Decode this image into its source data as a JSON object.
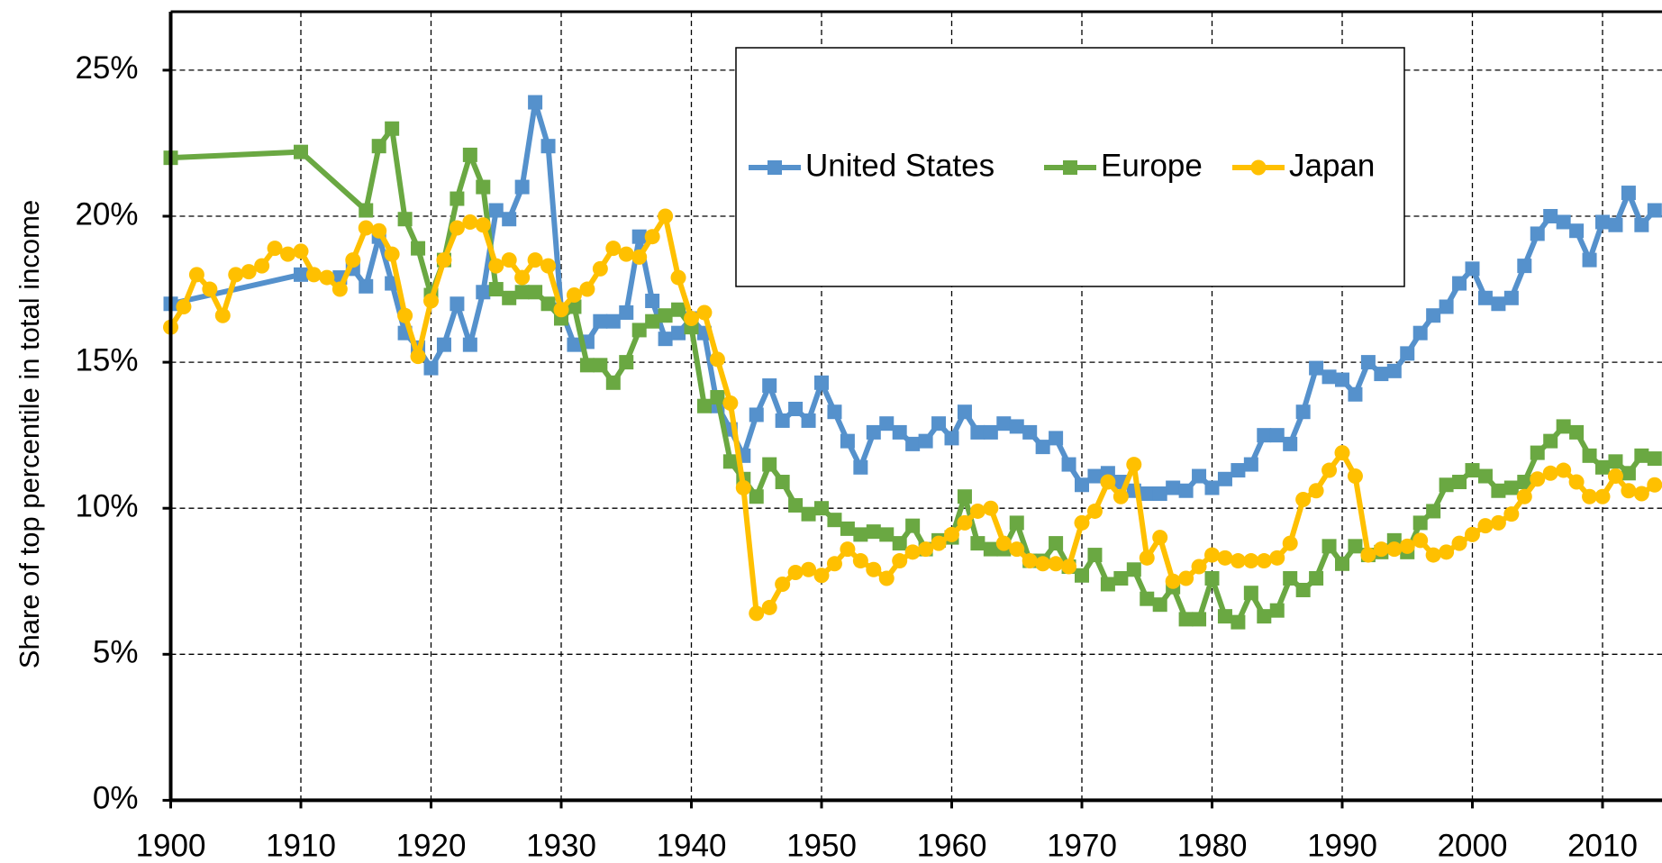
{
  "chart_data": {
    "type": "line",
    "y_label": "Share of top percentile in total income",
    "grid": true,
    "xlim": [
      1900,
      2015
    ],
    "ylim": [
      0,
      27
    ],
    "xticks": [
      1900,
      1910,
      1920,
      1930,
      1940,
      1950,
      1960,
      1970,
      1980,
      1990,
      2000,
      2010
    ],
    "yticks": [
      {
        "value": 0,
        "label": "0%"
      },
      {
        "value": 5,
        "label": "5%"
      },
      {
        "value": 10,
        "label": "10%"
      },
      {
        "value": 15,
        "label": "15%"
      },
      {
        "value": 20,
        "label": "20%"
      },
      {
        "value": 25,
        "label": "25%"
      }
    ],
    "series": [
      {
        "name": "United States",
        "color": "#5591cc",
        "marker": "square",
        "x": [
          1900,
          1910,
          1913,
          1914,
          1915,
          1916,
          1917,
          1918,
          1919,
          1920,
          1921,
          1922,
          1923,
          1924,
          1925,
          1926,
          1927,
          1928,
          1929,
          1930,
          1931,
          1932,
          1933,
          1934,
          1935,
          1936,
          1937,
          1938,
          1939,
          1940,
          1941,
          1942,
          1943,
          1944,
          1945,
          1946,
          1947,
          1948,
          1949,
          1950,
          1951,
          1952,
          1953,
          1954,
          1955,
          1956,
          1957,
          1958,
          1959,
          1960,
          1961,
          1962,
          1963,
          1964,
          1965,
          1966,
          1967,
          1968,
          1969,
          1970,
          1971,
          1972,
          1973,
          1974,
          1975,
          1976,
          1977,
          1978,
          1979,
          1980,
          1981,
          1982,
          1983,
          1984,
          1985,
          1986,
          1987,
          1988,
          1989,
          1990,
          1991,
          1992,
          1993,
          1994,
          1995,
          1996,
          1997,
          1998,
          1999,
          2000,
          2001,
          2002,
          2003,
          2004,
          2005,
          2006,
          2007,
          2008,
          2009,
          2010,
          2011,
          2012,
          2013,
          2014
        ],
        "values": [
          17.0,
          18.0,
          17.9,
          18.2,
          17.6,
          19.3,
          17.7,
          16.0,
          15.5,
          14.8,
          15.6,
          17.0,
          15.6,
          17.4,
          20.2,
          19.9,
          21.0,
          23.9,
          22.4,
          16.8,
          15.6,
          15.7,
          16.4,
          16.4,
          16.7,
          19.3,
          17.1,
          15.8,
          16.0,
          16.5,
          16.0,
          13.5,
          12.7,
          11.8,
          13.2,
          14.2,
          13.0,
          13.4,
          13.0,
          14.3,
          13.3,
          12.3,
          11.4,
          12.6,
          12.9,
          12.6,
          12.2,
          12.3,
          12.9,
          12.4,
          13.3,
          12.6,
          12.6,
          12.9,
          12.8,
          12.6,
          12.1,
          12.4,
          11.5,
          10.8,
          11.1,
          11.2,
          10.9,
          10.6,
          10.5,
          10.5,
          10.7,
          10.6,
          11.1,
          10.7,
          11.0,
          11.3,
          11.5,
          12.5,
          12.5,
          12.2,
          13.3,
          14.8,
          14.5,
          14.4,
          13.9,
          15.0,
          14.6,
          14.7,
          15.3,
          16.0,
          16.6,
          16.9,
          17.7,
          18.2,
          17.2,
          17.0,
          17.2,
          18.3,
          19.4,
          20.0,
          19.8,
          19.5,
          18.5,
          19.8,
          19.7,
          20.8,
          19.7,
          20.2
        ]
      },
      {
        "name": "Europe",
        "color": "#6aa842",
        "marker": "square",
        "x": [
          1900,
          1910,
          1915,
          1916,
          1917,
          1918,
          1919,
          1920,
          1921,
          1922,
          1923,
          1924,
          1925,
          1926,
          1927,
          1928,
          1929,
          1930,
          1931,
          1932,
          1933,
          1934,
          1935,
          1936,
          1937,
          1938,
          1939,
          1940,
          1941,
          1942,
          1943,
          1944,
          1945,
          1946,
          1947,
          1948,
          1949,
          1950,
          1951,
          1952,
          1953,
          1954,
          1955,
          1956,
          1957,
          1958,
          1959,
          1960,
          1961,
          1962,
          1963,
          1964,
          1965,
          1966,
          1967,
          1968,
          1969,
          1970,
          1971,
          1972,
          1973,
          1974,
          1975,
          1976,
          1977,
          1978,
          1979,
          1980,
          1981,
          1982,
          1983,
          1984,
          1985,
          1986,
          1987,
          1988,
          1989,
          1990,
          1991,
          1992,
          1993,
          1994,
          1995,
          1996,
          1997,
          1998,
          1999,
          2000,
          2001,
          2002,
          2003,
          2004,
          2005,
          2006,
          2007,
          2008,
          2009,
          2010,
          2011,
          2012,
          2013,
          2014
        ],
        "values": [
          22.0,
          22.2,
          20.2,
          22.4,
          23.0,
          19.9,
          18.9,
          17.3,
          18.5,
          20.6,
          22.1,
          21.0,
          17.5,
          17.2,
          17.4,
          17.4,
          17.0,
          16.5,
          16.9,
          14.9,
          14.9,
          14.3,
          15.0,
          16.1,
          16.4,
          16.6,
          16.8,
          16.2,
          13.5,
          13.8,
          11.6,
          11.0,
          10.4,
          11.5,
          10.9,
          10.1,
          9.8,
          10.0,
          9.6,
          9.3,
          9.1,
          9.2,
          9.1,
          8.8,
          9.4,
          8.6,
          8.9,
          9.0,
          10.4,
          8.8,
          8.6,
          8.6,
          9.5,
          8.2,
          8.2,
          8.8,
          8.0,
          7.7,
          8.4,
          7.4,
          7.6,
          7.9,
          6.9,
          6.7,
          7.3,
          6.2,
          6.2,
          7.6,
          6.3,
          6.1,
          7.1,
          6.3,
          6.5,
          7.6,
          7.2,
          7.6,
          8.7,
          8.1,
          8.7,
          8.4,
          8.5,
          8.9,
          8.5,
          9.5,
          9.9,
          10.8,
          10.9,
          11.3,
          11.1,
          10.6,
          10.7,
          10.9,
          11.9,
          12.3,
          12.8,
          12.6,
          11.8,
          11.4,
          11.6,
          11.2,
          11.8,
          11.7
        ]
      },
      {
        "name": "Japan",
        "color": "#ffc000",
        "marker": "circle",
        "x": [
          1900,
          1901,
          1902,
          1903,
          1904,
          1905,
          1906,
          1907,
          1908,
          1909,
          1910,
          1911,
          1912,
          1913,
          1914,
          1915,
          1916,
          1917,
          1918,
          1919,
          1920,
          1921,
          1922,
          1923,
          1924,
          1925,
          1926,
          1927,
          1928,
          1929,
          1930,
          1931,
          1932,
          1933,
          1934,
          1935,
          1936,
          1937,
          1938,
          1939,
          1940,
          1941,
          1942,
          1943,
          1944,
          1945,
          1946,
          1947,
          1948,
          1949,
          1950,
          1951,
          1952,
          1953,
          1954,
          1955,
          1956,
          1957,
          1958,
          1959,
          1960,
          1961,
          1962,
          1963,
          1964,
          1965,
          1966,
          1967,
          1968,
          1969,
          1970,
          1971,
          1972,
          1973,
          1974,
          1975,
          1976,
          1977,
          1978,
          1979,
          1980,
          1981,
          1982,
          1983,
          1984,
          1985,
          1986,
          1987,
          1988,
          1989,
          1990,
          1991,
          1992,
          1993,
          1994,
          1995,
          1996,
          1997,
          1998,
          1999,
          2000,
          2001,
          2002,
          2003,
          2004,
          2005,
          2006,
          2007,
          2008,
          2009,
          2010,
          2011,
          2012,
          2013,
          2014
        ],
        "values": [
          16.2,
          16.9,
          18.0,
          17.5,
          16.6,
          18.0,
          18.1,
          18.3,
          18.9,
          18.7,
          18.8,
          18.0,
          17.9,
          17.5,
          18.5,
          19.6,
          19.5,
          18.7,
          16.6,
          15.2,
          17.1,
          18.5,
          19.6,
          19.8,
          19.7,
          18.3,
          18.5,
          17.9,
          18.5,
          18.3,
          16.8,
          17.3,
          17.5,
          18.2,
          18.9,
          18.7,
          18.6,
          19.3,
          20.0,
          17.9,
          16.5,
          16.7,
          15.1,
          13.6,
          10.7,
          6.4,
          6.6,
          7.4,
          7.8,
          7.9,
          7.7,
          8.1,
          8.6,
          8.2,
          7.9,
          7.6,
          8.2,
          8.5,
          8.6,
          8.8,
          9.1,
          9.5,
          9.9,
          10.0,
          8.8,
          8.6,
          8.2,
          8.1,
          8.1,
          8.0,
          9.5,
          9.9,
          10.9,
          10.4,
          11.5,
          8.3,
          9.0,
          7.5,
          7.6,
          8.0,
          8.4,
          8.3,
          8.2,
          8.2,
          8.2,
          8.3,
          8.8,
          10.3,
          10.6,
          11.3,
          11.9,
          11.1,
          8.4,
          8.6,
          8.6,
          8.7,
          8.9,
          8.4,
          8.5,
          8.8,
          9.1,
          9.4,
          9.5,
          9.8,
          10.4,
          11.0,
          11.2,
          11.3,
          10.9,
          10.4,
          10.4,
          11.1,
          10.6,
          10.5,
          10.8
        ]
      }
    ]
  }
}
